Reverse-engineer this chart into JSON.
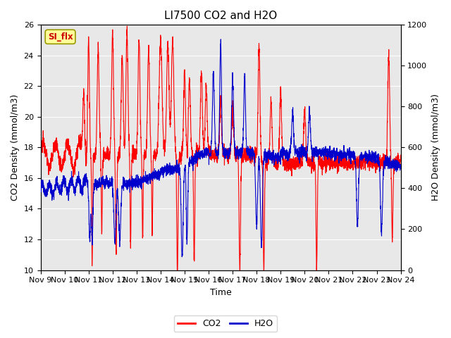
{
  "title": "LI7500 CO2 and H2O",
  "xlabel": "Time",
  "ylabel_left": "CO2 Density (mmol/m3)",
  "ylabel_right": "H2O Density (mmol/m3)",
  "ylim_left": [
    10,
    26
  ],
  "ylim_right": [
    0,
    1200
  ],
  "yticks_left": [
    10,
    12,
    14,
    16,
    18,
    20,
    22,
    24,
    26
  ],
  "yticks_right": [
    0,
    200,
    400,
    600,
    800,
    1000,
    1200
  ],
  "co2_color": "#FF0000",
  "h2o_color": "#0000CC",
  "background_color": "#E8E8E8",
  "label_box_text": "SI_flx",
  "label_box_facecolor": "#FFFF99",
  "label_box_edgecolor": "#999900",
  "label_box_textcolor": "#CC0000",
  "legend_co2": "CO2",
  "legend_h2o": "H2O",
  "xtick_labels": [
    "Nov 9",
    "Nov 10",
    "Nov 11",
    "Nov 12",
    "Nov 13",
    "Nov 14",
    "Nov 15",
    "Nov 16",
    "Nov 17",
    "Nov 18",
    "Nov 19",
    "Nov 20",
    "Nov 21",
    "Nov 22",
    "Nov 23",
    "Nov 24"
  ],
  "fig_facecolor": "#FFFFFF",
  "linewidth": 0.8,
  "title_fontsize": 11,
  "axis_fontsize": 9,
  "tick_fontsize": 8
}
